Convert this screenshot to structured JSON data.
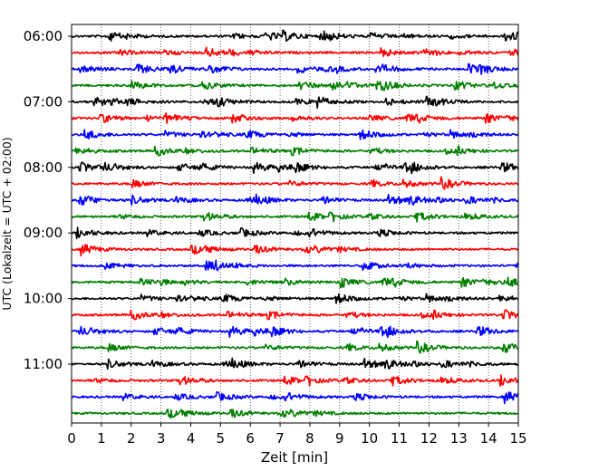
{
  "chart_data": {
    "type": "line",
    "title": "",
    "xlabel": "Zeit  [min]",
    "ylabel": "UTC (Lokalzeit = UTC + 02:00)",
    "xlim": [
      0,
      15
    ],
    "x_ticks": [
      0,
      1,
      2,
      3,
      4,
      5,
      6,
      7,
      8,
      9,
      10,
      11,
      12,
      13,
      14,
      15
    ],
    "y_tick_labels": [
      "06:00",
      "07:00",
      "08:00",
      "09:00",
      "10:00",
      "11:00"
    ],
    "grid": "vertical dotted at each minute",
    "trace_interval_minutes": 15,
    "first_trace": "06:00",
    "trace_count": 24,
    "trace_colors": [
      "#000000",
      "#ff0000",
      "#0000ff",
      "#007f00"
    ]
  }
}
